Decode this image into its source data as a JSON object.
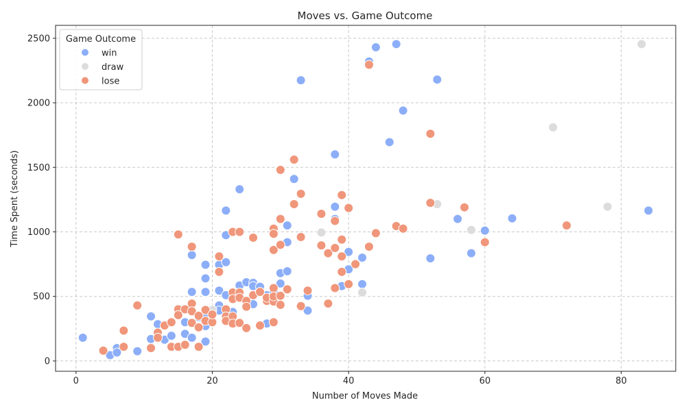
{
  "chart_data": {
    "type": "scatter",
    "title": "Moves vs. Game Outcome",
    "xlabel": "Number of Moves Made",
    "ylabel": "Time Spent (seconds)",
    "xlim": [
      -3,
      88
    ],
    "ylim": [
      -80,
      2600
    ],
    "xticks": [
      0,
      20,
      40,
      60,
      80
    ],
    "yticks": [
      0,
      500,
      1000,
      1500,
      2000,
      2500
    ],
    "grid": true,
    "legend": {
      "title": "Game Outcome",
      "placement": "top-left"
    },
    "series": [
      {
        "name": "win",
        "color": "#8caef8",
        "points": [
          [
            1,
            180
          ],
          [
            5,
            45
          ],
          [
            6,
            100
          ],
          [
            6,
            65
          ],
          [
            9,
            75
          ],
          [
            11,
            345
          ],
          [
            11,
            170
          ],
          [
            12,
            285
          ],
          [
            13,
            165
          ],
          [
            14,
            195
          ],
          [
            16,
            210
          ],
          [
            16,
            300
          ],
          [
            17,
            180
          ],
          [
            17,
            535
          ],
          [
            17,
            820
          ],
          [
            18,
            340
          ],
          [
            19,
            640
          ],
          [
            19,
            745
          ],
          [
            19,
            535
          ],
          [
            19,
            370
          ],
          [
            19,
            270
          ],
          [
            19,
            150
          ],
          [
            20,
            395
          ],
          [
            21,
            545
          ],
          [
            21,
            430
          ],
          [
            21,
            390
          ],
          [
            21,
            745
          ],
          [
            22,
            1165
          ],
          [
            22,
            975
          ],
          [
            22,
            765
          ],
          [
            22,
            510
          ],
          [
            23,
            380
          ],
          [
            24,
            1330
          ],
          [
            24,
            585
          ],
          [
            25,
            610
          ],
          [
            26,
            605
          ],
          [
            26,
            440
          ],
          [
            26,
            580
          ],
          [
            27,
            575
          ],
          [
            28,
            510
          ],
          [
            28,
            290
          ],
          [
            29,
            540
          ],
          [
            30,
            600
          ],
          [
            30,
            680
          ],
          [
            31,
            1050
          ],
          [
            31,
            920
          ],
          [
            31,
            695
          ],
          [
            32,
            1410
          ],
          [
            33,
            2175
          ],
          [
            34,
            505
          ],
          [
            34,
            390
          ],
          [
            38,
            1600
          ],
          [
            38,
            1195
          ],
          [
            38,
            1100
          ],
          [
            39,
            580
          ],
          [
            40,
            710
          ],
          [
            40,
            845
          ],
          [
            42,
            800
          ],
          [
            42,
            595
          ],
          [
            43,
            2320
          ],
          [
            44,
            2430
          ],
          [
            46,
            1695
          ],
          [
            47,
            2455
          ],
          [
            48,
            1940
          ],
          [
            52,
            795
          ],
          [
            53,
            2180
          ],
          [
            56,
            1100
          ],
          [
            58,
            835
          ],
          [
            60,
            1010
          ],
          [
            64,
            1105
          ],
          [
            84,
            1165
          ]
        ]
      },
      {
        "name": "draw",
        "color": "#dcdcdc",
        "points": [
          [
            20,
            395
          ],
          [
            36,
            995
          ],
          [
            42,
            530
          ],
          [
            53,
            1215
          ],
          [
            58,
            1015
          ],
          [
            70,
            1810
          ],
          [
            78,
            1195
          ],
          [
            83,
            2455
          ]
        ]
      },
      {
        "name": "lose",
        "color": "#f0967a",
        "points": [
          [
            4,
            80
          ],
          [
            7,
            235
          ],
          [
            7,
            110
          ],
          [
            9,
            430
          ],
          [
            11,
            100
          ],
          [
            12,
            220
          ],
          [
            12,
            180
          ],
          [
            13,
            275
          ],
          [
            14,
            300
          ],
          [
            14,
            110
          ],
          [
            15,
            980
          ],
          [
            15,
            400
          ],
          [
            15,
            355
          ],
          [
            15,
            110
          ],
          [
            16,
            125
          ],
          [
            16,
            400
          ],
          [
            17,
            885
          ],
          [
            17,
            445
          ],
          [
            17,
            385
          ],
          [
            17,
            295
          ],
          [
            18,
            350
          ],
          [
            18,
            260
          ],
          [
            18,
            110
          ],
          [
            19,
            395
          ],
          [
            19,
            310
          ],
          [
            20,
            300
          ],
          [
            20,
            360
          ],
          [
            21,
            810
          ],
          [
            21,
            690
          ],
          [
            22,
            400
          ],
          [
            22,
            345
          ],
          [
            22,
            310
          ],
          [
            23,
            1000
          ],
          [
            23,
            530
          ],
          [
            23,
            480
          ],
          [
            23,
            345
          ],
          [
            23,
            290
          ],
          [
            24,
            1000
          ],
          [
            24,
            530
          ],
          [
            24,
            490
          ],
          [
            24,
            295
          ],
          [
            25,
            465
          ],
          [
            25,
            420
          ],
          [
            25,
            255
          ],
          [
            26,
            955
          ],
          [
            26,
            510
          ],
          [
            27,
            535
          ],
          [
            27,
            275
          ],
          [
            28,
            465
          ],
          [
            28,
            490
          ],
          [
            29,
            1025
          ],
          [
            29,
            985
          ],
          [
            29,
            860
          ],
          [
            29,
            565
          ],
          [
            29,
            460
          ],
          [
            29,
            500
          ],
          [
            29,
            300
          ],
          [
            30,
            1480
          ],
          [
            30,
            1100
          ],
          [
            30,
            900
          ],
          [
            30,
            505
          ],
          [
            30,
            435
          ],
          [
            31,
            555
          ],
          [
            32,
            1560
          ],
          [
            32,
            1215
          ],
          [
            33,
            1295
          ],
          [
            33,
            960
          ],
          [
            33,
            425
          ],
          [
            34,
            545
          ],
          [
            36,
            1140
          ],
          [
            36,
            895
          ],
          [
            37,
            835
          ],
          [
            37,
            445
          ],
          [
            38,
            1085
          ],
          [
            38,
            875
          ],
          [
            38,
            565
          ],
          [
            39,
            1285
          ],
          [
            39,
            940
          ],
          [
            39,
            810
          ],
          [
            39,
            690
          ],
          [
            40,
            1185
          ],
          [
            40,
            595
          ],
          [
            41,
            750
          ],
          [
            43,
            2295
          ],
          [
            43,
            885
          ],
          [
            44,
            990
          ],
          [
            47,
            1045
          ],
          [
            48,
            1025
          ],
          [
            52,
            1760
          ],
          [
            52,
            1225
          ],
          [
            57,
            1190
          ],
          [
            60,
            920
          ],
          [
            72,
            1050
          ]
        ]
      }
    ]
  }
}
